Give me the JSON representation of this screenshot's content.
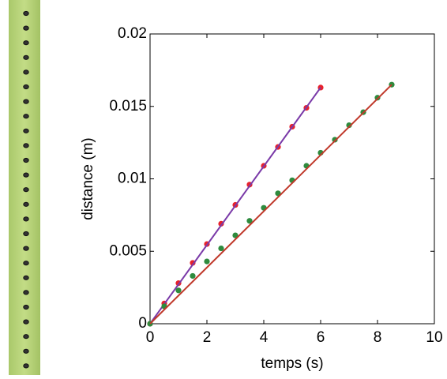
{
  "chart_data": {
    "type": "scatter",
    "xlabel": "temps (s)",
    "ylabel": "distance (m)",
    "xlim": [
      0,
      10
    ],
    "ylim": [
      0,
      0.02
    ],
    "xticks": [
      0,
      2,
      4,
      6,
      8,
      10
    ],
    "yticks": [
      0,
      0.005,
      0.01,
      0.015,
      0.02
    ],
    "grid": false,
    "box": true,
    "series": [
      {
        "mode": "markers",
        "color": "#e8222c",
        "x": [
          0,
          0.5,
          1,
          1.5,
          2,
          2.5,
          3,
          3.5,
          4,
          4.5,
          5,
          5.5,
          6
        ],
        "values": [
          0,
          0.0014,
          0.0028,
          0.0042,
          0.0055,
          0.0069,
          0.0082,
          0.0096,
          0.0109,
          0.0122,
          0.0136,
          0.0149,
          0.0163
        ]
      },
      {
        "mode": "line",
        "color": "#7a3aa8",
        "x": [
          0,
          6
        ],
        "values": [
          0,
          0.0163
        ]
      },
      {
        "mode": "markers",
        "color": "#2e8b3e",
        "x": [
          0,
          0.5,
          1,
          1.5,
          2,
          2.5,
          3,
          3.5,
          4,
          4.5,
          5,
          5.5,
          6,
          6.5,
          7,
          7.5,
          8,
          8.5
        ],
        "values": [
          0,
          0.0012,
          0.0023,
          0.0033,
          0.0043,
          0.0052,
          0.0061,
          0.0071,
          0.008,
          0.009,
          0.0099,
          0.0109,
          0.0118,
          0.0127,
          0.0137,
          0.0146,
          0.0156,
          0.0165
        ]
      },
      {
        "mode": "line",
        "color": "#c0392b",
        "x": [
          0,
          8.5
        ],
        "values": [
          0,
          0.0165
        ]
      }
    ]
  }
}
